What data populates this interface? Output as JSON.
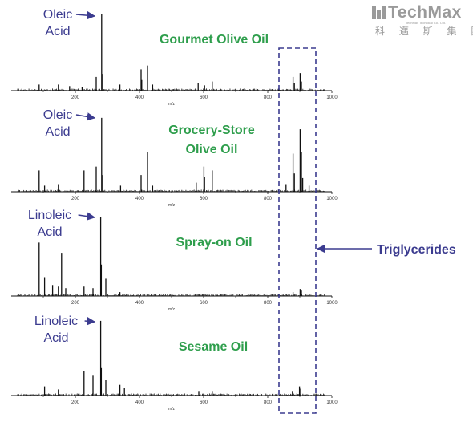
{
  "logo": {
    "name": "TechMax",
    "sub": "科 邁 斯 集 團",
    "tiny": "TechMax Technical Co., Ltd."
  },
  "colors": {
    "title": "#2e9e4c",
    "annotation": "#3b3b8f",
    "box": "#3b3b8f",
    "spectrum": "#111111",
    "axis": "#111111"
  },
  "chart_data": [
    {
      "type": "bar",
      "title": "Gourmet Olive Oil",
      "annotation": "Oleic\nAcid",
      "xlabel": "m/z",
      "xlim": [
        0,
        1000
      ],
      "xticks": [
        200,
        400,
        600,
        800,
        1000
      ],
      "peaks": [
        {
          "x": 265,
          "y": 18
        },
        {
          "x": 282,
          "y": 100
        },
        {
          "x": 283,
          "y": 22
        },
        {
          "x": 87,
          "y": 8
        },
        {
          "x": 147,
          "y": 8
        },
        {
          "x": 182,
          "y": 6
        },
        {
          "x": 221,
          "y": 5
        },
        {
          "x": 339,
          "y": 8
        },
        {
          "x": 405,
          "y": 28
        },
        {
          "x": 407,
          "y": 14
        },
        {
          "x": 425,
          "y": 33
        },
        {
          "x": 441,
          "y": 8
        },
        {
          "x": 583,
          "y": 10
        },
        {
          "x": 603,
          "y": 7
        },
        {
          "x": 627,
          "y": 12
        },
        {
          "x": 835,
          "y": 3
        },
        {
          "x": 879,
          "y": 18
        },
        {
          "x": 883,
          "y": 10
        },
        {
          "x": 901,
          "y": 23
        },
        {
          "x": 905,
          "y": 12
        }
      ]
    },
    {
      "type": "bar",
      "title": "Grocery-Store\nOlive Oil",
      "annotation": "Oleic\nAcid",
      "xlabel": "m/z",
      "xlim": [
        0,
        1000
      ],
      "xticks": [
        200,
        400,
        600,
        800,
        1000
      ],
      "peaks": [
        {
          "x": 87,
          "y": 28
        },
        {
          "x": 104,
          "y": 8
        },
        {
          "x": 147,
          "y": 10
        },
        {
          "x": 227,
          "y": 28
        },
        {
          "x": 265,
          "y": 33
        },
        {
          "x": 282,
          "y": 97
        },
        {
          "x": 283,
          "y": 22
        },
        {
          "x": 341,
          "y": 8
        },
        {
          "x": 405,
          "y": 22
        },
        {
          "x": 425,
          "y": 52
        },
        {
          "x": 441,
          "y": 8
        },
        {
          "x": 577,
          "y": 12
        },
        {
          "x": 601,
          "y": 33
        },
        {
          "x": 603,
          "y": 20
        },
        {
          "x": 627,
          "y": 28
        },
        {
          "x": 857,
          "y": 10
        },
        {
          "x": 879,
          "y": 50
        },
        {
          "x": 883,
          "y": 24
        },
        {
          "x": 901,
          "y": 82
        },
        {
          "x": 905,
          "y": 52
        },
        {
          "x": 909,
          "y": 18
        },
        {
          "x": 929,
          "y": 8
        }
      ]
    },
    {
      "type": "bar",
      "title": "Spray-on Oil",
      "annotation": "Linoleic\nAcid",
      "xlabel": "m/z",
      "xlim": [
        0,
        1000
      ],
      "xticks": [
        200,
        400,
        600,
        800,
        1000
      ],
      "peaks": [
        {
          "x": 87,
          "y": 68
        },
        {
          "x": 104,
          "y": 24
        },
        {
          "x": 129,
          "y": 14
        },
        {
          "x": 147,
          "y": 12
        },
        {
          "x": 157,
          "y": 55
        },
        {
          "x": 170,
          "y": 10
        },
        {
          "x": 227,
          "y": 12
        },
        {
          "x": 255,
          "y": 10
        },
        {
          "x": 279,
          "y": 100
        },
        {
          "x": 281,
          "y": 40
        },
        {
          "x": 295,
          "y": 22
        },
        {
          "x": 339,
          "y": 5
        },
        {
          "x": 879,
          "y": 5
        },
        {
          "x": 901,
          "y": 9
        },
        {
          "x": 905,
          "y": 7
        }
      ]
    },
    {
      "type": "bar",
      "title": "Sesame Oil",
      "annotation": "Linoleic\nAcid",
      "xlabel": "m/z",
      "xlim": [
        0,
        1000
      ],
      "xticks": [
        200,
        400,
        600,
        800,
        1000
      ],
      "peaks": [
        {
          "x": 104,
          "y": 12
        },
        {
          "x": 147,
          "y": 8
        },
        {
          "x": 227,
          "y": 32
        },
        {
          "x": 255,
          "y": 26
        },
        {
          "x": 279,
          "y": 98
        },
        {
          "x": 281,
          "y": 36
        },
        {
          "x": 295,
          "y": 20
        },
        {
          "x": 339,
          "y": 14
        },
        {
          "x": 353,
          "y": 10
        },
        {
          "x": 585,
          "y": 6
        },
        {
          "x": 627,
          "y": 6
        },
        {
          "x": 877,
          "y": 6
        },
        {
          "x": 899,
          "y": 12
        },
        {
          "x": 903,
          "y": 9
        }
      ]
    }
  ],
  "annotation": {
    "label": "Triglycerides",
    "region": [
      840,
      955
    ]
  }
}
